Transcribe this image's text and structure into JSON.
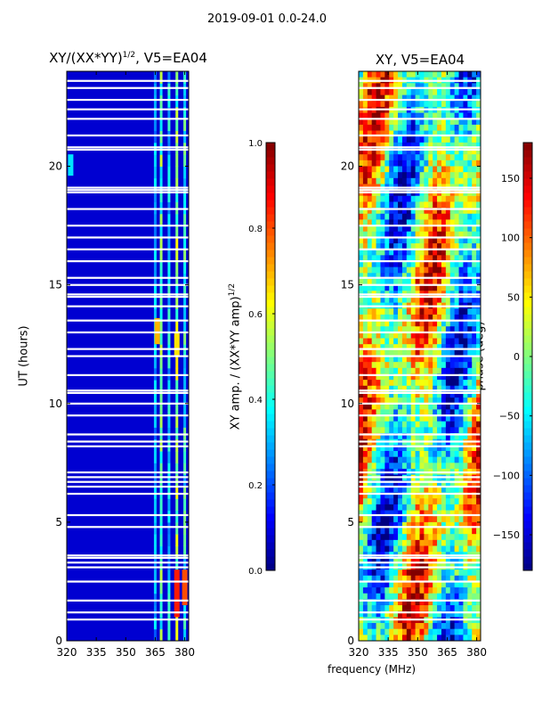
{
  "chart_data": [
    {
      "type": "heatmap",
      "title": "XY/(XX*YY)",
      "title_superscript": "1/2",
      "title_suffix": ", V5=EA04",
      "xlabel": "",
      "ylabel": "UT (hours)",
      "xlim": [
        320,
        382
      ],
      "ylim": [
        0,
        24
      ],
      "x_ticks": [
        320,
        335,
        350,
        365,
        380
      ],
      "y_ticks": [
        0,
        5,
        10,
        15,
        20
      ],
      "background_level": 0.08,
      "bright_channels": [
        {
          "freq": 365,
          "level": 0.3
        },
        {
          "freq": 368,
          "level": 0.45
        },
        {
          "freq": 372,
          "level": 0.35
        },
        {
          "freq": 376,
          "level": 0.5
        },
        {
          "freq": 380,
          "level": 0.4
        }
      ],
      "hot_patches": [
        {
          "freq": 376,
          "t_start": 1.0,
          "t_end": 3.0,
          "level": 0.85
        },
        {
          "freq": 380,
          "t_start": 1.5,
          "t_end": 3.0,
          "level": 0.8
        },
        {
          "freq": 366,
          "t_start": 12.5,
          "t_end": 13.6,
          "level": 0.7
        },
        {
          "freq": 376,
          "t_start": 12.0,
          "t_end": 13.0,
          "level": 0.65
        },
        {
          "freq": 322,
          "t_start": 19.6,
          "t_end": 20.5,
          "level": 0.35
        }
      ],
      "gaps_hours": [
        0.9,
        1.2,
        1.7,
        2.5,
        3.1,
        3.3,
        3.5,
        3.6,
        4.8,
        5.3,
        6.2,
        6.5,
        6.7,
        6.9,
        7.1,
        8.2,
        8.4,
        8.7,
        9.5,
        10.0,
        10.45,
        10.55,
        11.2,
        12.0,
        12.3,
        13.0,
        13.5,
        14.1,
        14.5,
        14.6,
        15.0,
        15.3,
        16.0,
        16.5,
        17.0,
        17.5,
        18.2,
        18.9,
        19.0,
        19.1,
        20.7,
        20.8,
        21.3,
        22.0,
        22.4,
        22.8,
        23.3,
        23.6
      ],
      "colorbar": {
        "label": "XY amp. / (XX*YY amp)",
        "label_superscript": "1/2",
        "min": 0.0,
        "max": 1.0,
        "ticks": [
          "0.0",
          "0.2",
          "0.4",
          "0.6",
          "0.8",
          "1.0"
        ]
      }
    },
    {
      "type": "heatmap",
      "title": "XY, V5=EA04",
      "xlabel": "frequency (MHz)",
      "ylabel": "",
      "xlim": [
        320,
        382
      ],
      "ylim": [
        0,
        24
      ],
      "x_ticks": [
        320,
        335,
        350,
        365,
        380
      ],
      "y_ticks": [
        0,
        5,
        10,
        15,
        20
      ],
      "gaps_hours": [
        0.9,
        1.2,
        1.7,
        2.5,
        3.1,
        3.3,
        3.5,
        3.6,
        4.8,
        5.3,
        6.2,
        6.5,
        6.7,
        6.9,
        7.1,
        8.2,
        8.4,
        8.7,
        9.5,
        10.0,
        10.45,
        10.55,
        11.2,
        12.0,
        12.3,
        13.0,
        13.5,
        14.1,
        14.5,
        14.6,
        15.0,
        15.3,
        16.0,
        16.5,
        17.0,
        17.5,
        18.2,
        18.9,
        19.0,
        19.1,
        20.7,
        20.8,
        21.3,
        22.0,
        22.4,
        22.8,
        23.3,
        23.6
      ],
      "colorbar": {
        "label": "phase (deg)",
        "min": -180,
        "max": 180,
        "ticks": [
          "150",
          "100",
          "50",
          "0",
          "−50",
          "−100",
          "−150"
        ],
        "tick_values": [
          150,
          100,
          50,
          0,
          -50,
          -100,
          -150
        ]
      }
    }
  ],
  "suptitle": "2019-09-01 0.0-24.0",
  "colorbar1_ticks_font": "small"
}
